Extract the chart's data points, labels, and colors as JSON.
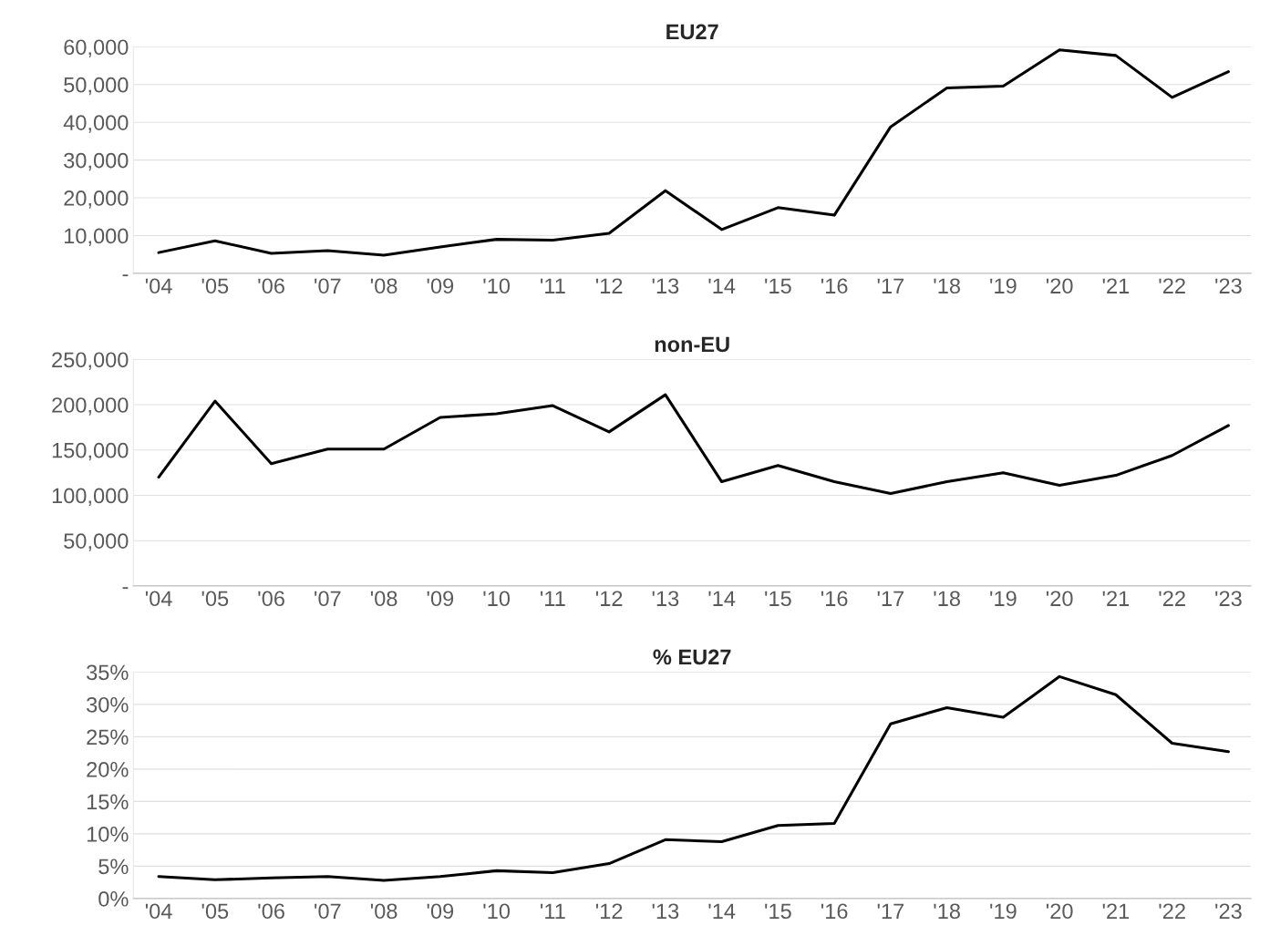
{
  "chart_data": [
    {
      "type": "line",
      "title": "EU27",
      "categories": [
        "'04",
        "'05",
        "'06",
        "'07",
        "'08",
        "'09",
        "'10",
        "'11",
        "'12",
        "'13",
        "'14",
        "'15",
        "'16",
        "'17",
        "'18",
        "'19",
        "'20",
        "'21",
        "'22",
        "'23"
      ],
      "series": [
        {
          "color": "#000000",
          "values": [
            5500,
            8600,
            5300,
            6000,
            4800,
            7000,
            9000,
            8800,
            10600,
            21900,
            11600,
            17400,
            15400,
            38800,
            49100,
            49600,
            59200,
            57700,
            46600,
            53400
          ]
        }
      ],
      "ylim": [
        0,
        60000
      ],
      "yticks": [
        {
          "value": 0,
          "label": "-"
        },
        {
          "value": 10000,
          "label": "10,000"
        },
        {
          "value": 20000,
          "label": "20,000"
        },
        {
          "value": 30000,
          "label": "30,000"
        },
        {
          "value": 40000,
          "label": "40,000"
        },
        {
          "value": 50000,
          "label": "50,000"
        },
        {
          "value": 60000,
          "label": "60,000"
        }
      ],
      "grid": "y",
      "marker": "none",
      "line_style": "solid"
    },
    {
      "type": "line",
      "title": "non-EU",
      "categories": [
        "'04",
        "'05",
        "'06",
        "'07",
        "'08",
        "'09",
        "'10",
        "'11",
        "'12",
        "'13",
        "'14",
        "'15",
        "'16",
        "'17",
        "'18",
        "'19",
        "'20",
        "'21",
        "'22",
        "'23"
      ],
      "series": [
        {
          "color": "#000000",
          "values": [
            120000,
            204000,
            135000,
            151000,
            151000,
            186000,
            190000,
            199000,
            170000,
            211000,
            115000,
            133000,
            115000,
            102000,
            115000,
            125000,
            111000,
            122000,
            144000,
            177000
          ]
        }
      ],
      "ylim": [
        0,
        250000
      ],
      "yticks": [
        {
          "value": 0,
          "label": "-"
        },
        {
          "value": 50000,
          "label": "50,000"
        },
        {
          "value": 100000,
          "label": "100,000"
        },
        {
          "value": 150000,
          "label": "150,000"
        },
        {
          "value": 200000,
          "label": "200,000"
        },
        {
          "value": 250000,
          "label": "250,000"
        }
      ],
      "grid": "y",
      "marker": "none",
      "line_style": "solid"
    },
    {
      "type": "line",
      "title": "% EU27",
      "categories": [
        "'04",
        "'05",
        "'06",
        "'07",
        "'08",
        "'09",
        "'10",
        "'11",
        "'12",
        "'13",
        "'14",
        "'15",
        "'16",
        "'17",
        "'18",
        "'19",
        "'20",
        "'21",
        "'22",
        "'23"
      ],
      "series": [
        {
          "color": "#000000",
          "values": [
            3.4,
            2.9,
            3.2,
            3.4,
            2.8,
            3.4,
            4.3,
            4.0,
            5.4,
            9.1,
            8.8,
            11.3,
            11.6,
            27.0,
            29.5,
            28.0,
            34.3,
            31.5,
            24.0,
            22.7
          ]
        }
      ],
      "ylim": [
        0,
        35
      ],
      "yticks": [
        {
          "value": 0,
          "label": "0%"
        },
        {
          "value": 5,
          "label": "5%"
        },
        {
          "value": 10,
          "label": "10%"
        },
        {
          "value": 15,
          "label": "15%"
        },
        {
          "value": 20,
          "label": "20%"
        },
        {
          "value": 25,
          "label": "25%"
        },
        {
          "value": 30,
          "label": "30%"
        },
        {
          "value": 35,
          "label": "35%"
        }
      ],
      "grid": "y",
      "marker": "none",
      "line_style": "solid"
    }
  ]
}
